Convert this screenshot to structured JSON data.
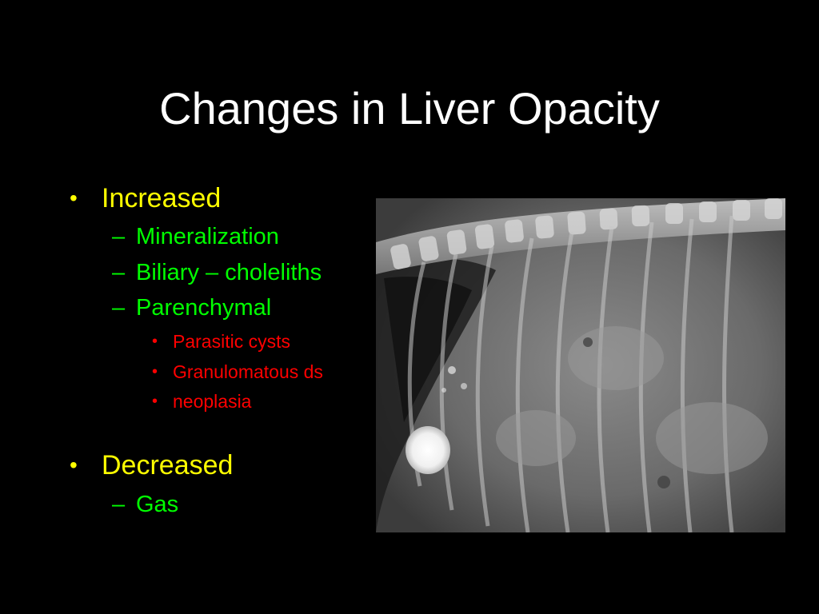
{
  "slide": {
    "title": "Changes in Liver Opacity",
    "sections": [
      {
        "label": "Increased",
        "items": [
          {
            "label": "Mineralization"
          },
          {
            "label": "Biliary – choleliths"
          },
          {
            "label": "Parenchymal",
            "subitems": [
              "Parasitic cysts",
              "Granulomatous ds",
              "neoplasia"
            ]
          }
        ]
      },
      {
        "label": "Decreased",
        "items": [
          {
            "label": "Gas"
          }
        ]
      }
    ],
    "bullet_glyph": "•",
    "dash_glyph": "–",
    "colors": {
      "background": "#000000",
      "title": "#ffffff",
      "level1": "#ffff00",
      "level2": "#00ff00",
      "level3": "#ff0000"
    },
    "image": {
      "icon": "radiograph-image"
    }
  }
}
